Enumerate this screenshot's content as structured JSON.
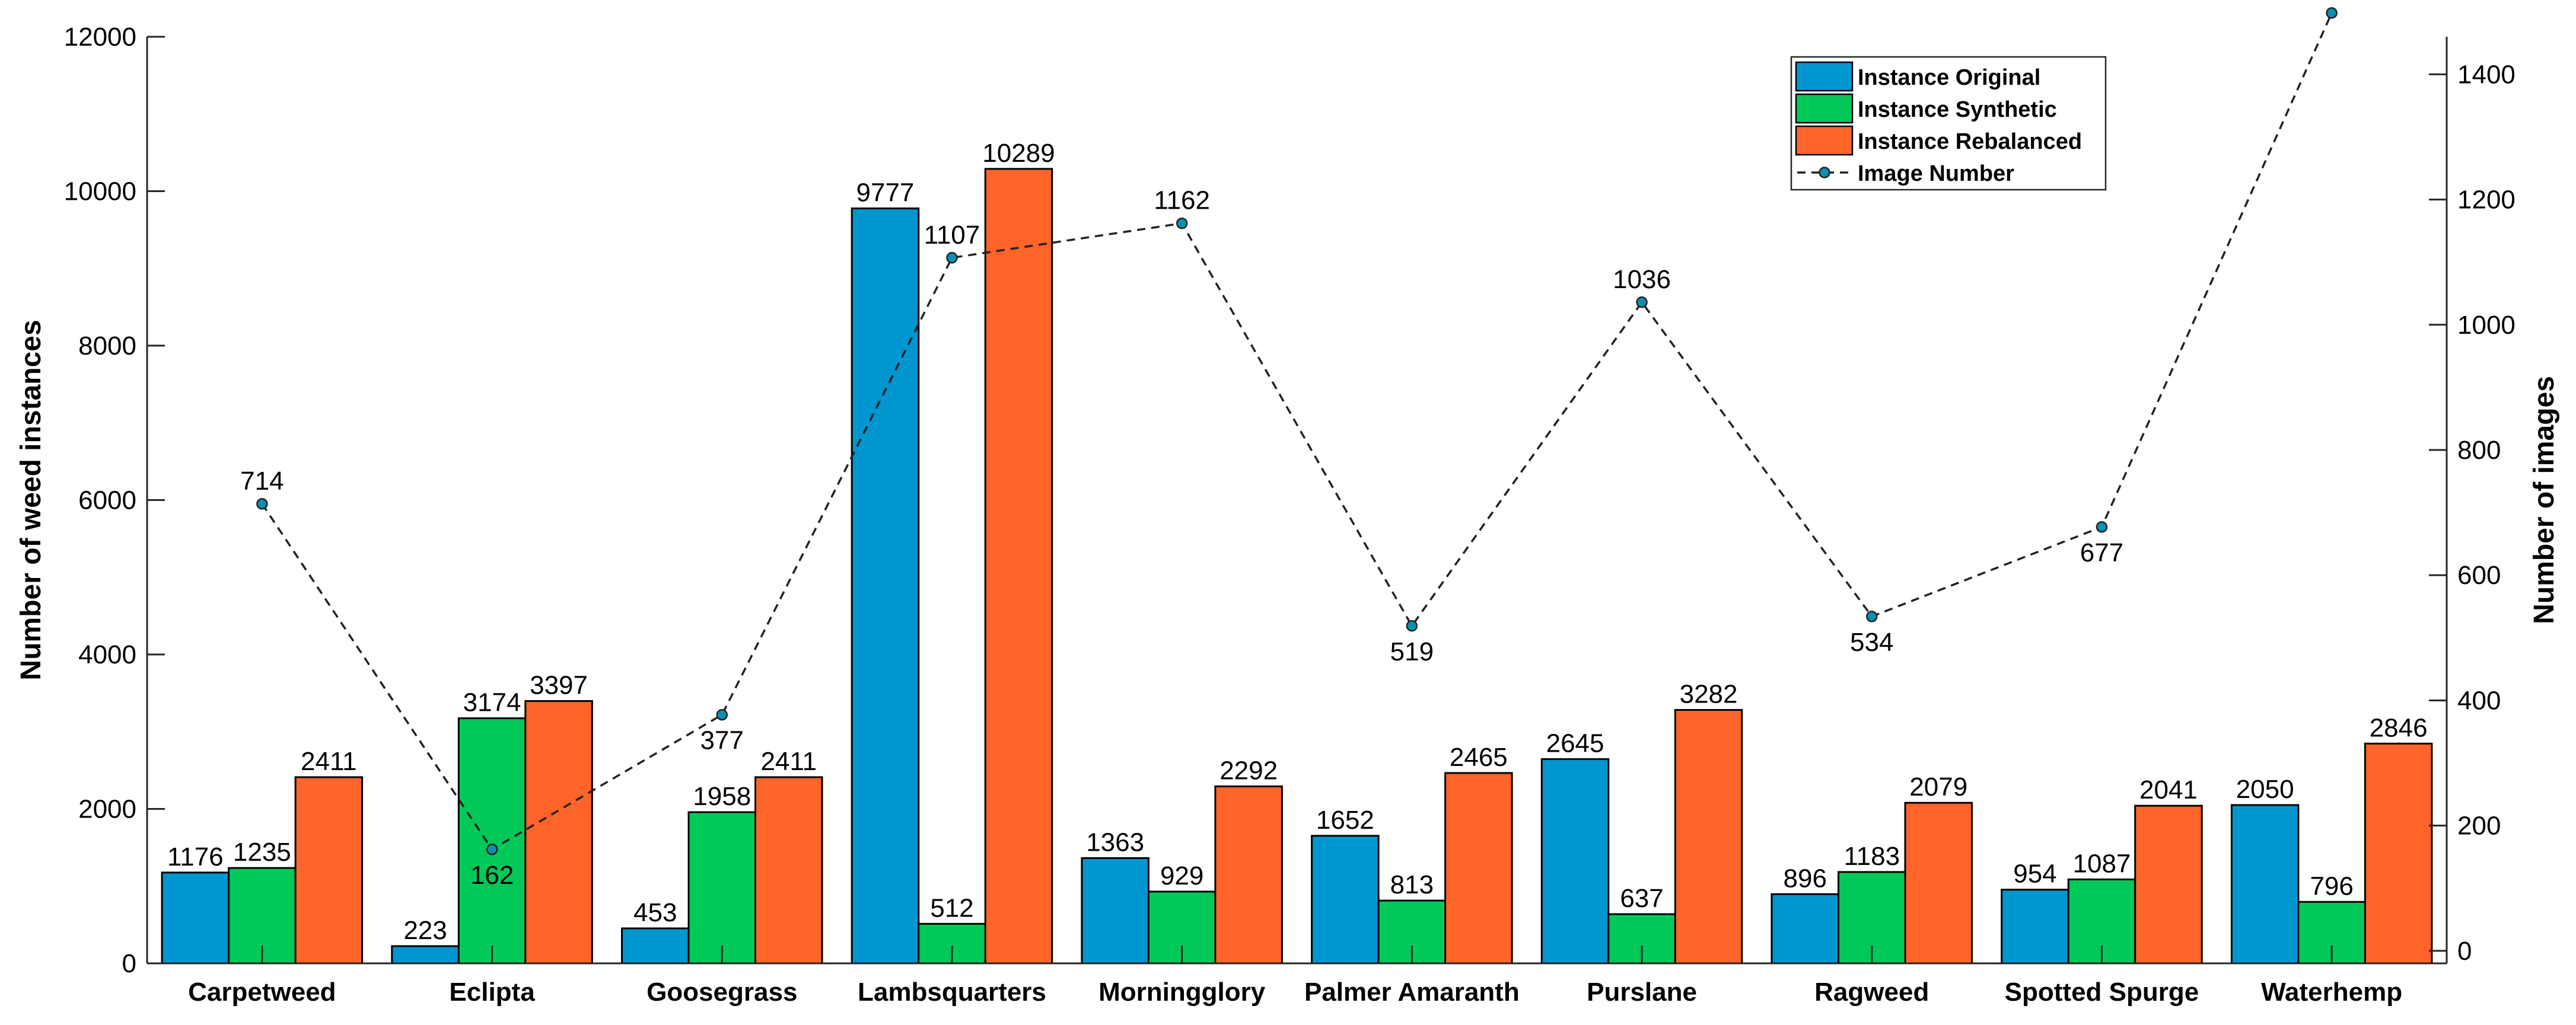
{
  "chart_data": {
    "type": "bar",
    "categories": [
      "Carpetweed",
      "Eclipta",
      "Goosegrass",
      "Lambsquarters",
      "Morningglory",
      "Palmer Amaranth",
      "Purslane",
      "Ragweed",
      "Spotted Spurge",
      "Waterhemp"
    ],
    "series": [
      {
        "name": "Instance Original",
        "color": "#0096d0",
        "values": [
          1176,
          223,
          453,
          9777,
          1363,
          1652,
          2645,
          896,
          954,
          2050
        ]
      },
      {
        "name": "Instance Synthetic",
        "color": "#00c95a",
        "values": [
          1235,
          3174,
          1958,
          512,
          929,
          813,
          637,
          1183,
          1087,
          796
        ]
      },
      {
        "name": "Instance Rebalanced",
        "color": "#ff6428",
        "values": [
          2411,
          3397,
          2411,
          10289,
          2292,
          2465,
          3282,
          2079,
          2041,
          2846
        ]
      }
    ],
    "line_series": {
      "name": "Image Number",
      "axis": "right",
      "color": "#0b8fb0",
      "style": "dashed",
      "values": [
        714,
        162,
        377,
        1107,
        1162,
        519,
        1036,
        534,
        677,
        1498
      ]
    },
    "ylabel": "Number of weed instances",
    "ylabel_right": "Number of images",
    "ylim": [
      0,
      12000
    ],
    "yticks": [
      0,
      2000,
      4000,
      6000,
      8000,
      10000,
      12000
    ],
    "ylim_right": [
      -20,
      1460
    ],
    "yticks_right": [
      0,
      200,
      400,
      600,
      800,
      1000,
      1200,
      1400
    ],
    "legend_position": "top-right"
  }
}
